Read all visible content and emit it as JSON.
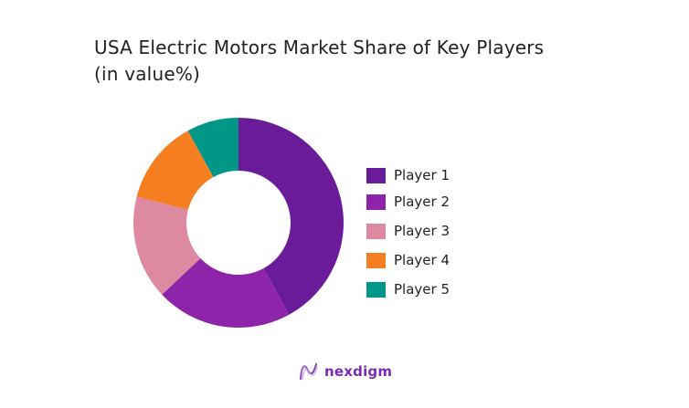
{
  "title_line1": "USA Electric Motors Market Share of Key Players",
  "title_line2": "(in value%)",
  "chart_data": {
    "type": "pie",
    "subtype": "donut",
    "title": "USA Electric Motors Market Share of Key Players (in value%)",
    "categories": [
      "Player 1",
      "Player 2",
      "Player 3",
      "Player 4",
      "Player 5"
    ],
    "values": [
      42,
      21,
      16,
      13,
      8
    ],
    "colors": [
      "#6a1b9a",
      "#8e24aa",
      "#de89a2",
      "#f57f20",
      "#009688"
    ],
    "legend_position": "right",
    "start_angle": 0,
    "direction": "clockwise"
  },
  "legend": {
    "items": [
      {
        "label": "Player 1",
        "color": "#6a1b9a"
      },
      {
        "label": "Player 2",
        "color": "#8e24aa"
      },
      {
        "label": "Player 3",
        "color": "#de89a2"
      },
      {
        "label": "Player 4",
        "color": "#f57f20"
      },
      {
        "label": "Player 5",
        "color": "#009688"
      }
    ]
  },
  "logo": {
    "text": "nexdigm",
    "icon": "nexdigm-wave-icon"
  }
}
